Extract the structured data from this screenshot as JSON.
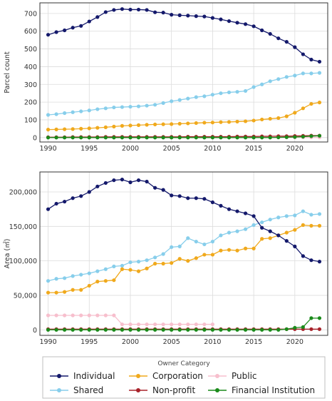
{
  "colors": {
    "Individual": "#14196b",
    "Shared": "#87ceeb",
    "Corporation": "#f0a91c",
    "Non-profit": "#a8222a",
    "Public": "#f7bfcd",
    "Financial Institution": "#1a8a1a"
  },
  "chart_data": [
    {
      "type": "line",
      "title": "",
      "xlabel": "",
      "ylabel": "Parcel count",
      "xlim": [
        1989,
        2024
      ],
      "ylim": [
        -25,
        760
      ],
      "xticks": [
        1990,
        1995,
        2000,
        2005,
        2010,
        2015,
        2020
      ],
      "yticks": [
        0,
        100,
        200,
        300,
        400,
        500,
        600,
        700
      ],
      "ytick_labels": [
        "0",
        "100",
        "200",
        "300",
        "400",
        "500",
        "600",
        "700"
      ],
      "x": [
        1990,
        1991,
        1992,
        1993,
        1994,
        1995,
        1996,
        1997,
        1998,
        1999,
        2000,
        2001,
        2002,
        2003,
        2004,
        2005,
        2006,
        2007,
        2008,
        2009,
        2010,
        2011,
        2012,
        2013,
        2014,
        2015,
        2016,
        2017,
        2018,
        2019,
        2020,
        2021,
        2022,
        2023
      ],
      "series": [
        {
          "name": "Individual",
          "values": [
            580,
            595,
            605,
            620,
            630,
            655,
            680,
            708,
            720,
            725,
            722,
            722,
            720,
            707,
            705,
            693,
            690,
            688,
            685,
            683,
            675,
            667,
            657,
            648,
            640,
            628,
            605,
            585,
            560,
            540,
            510,
            470,
            440,
            428
          ]
        },
        {
          "name": "Shared",
          "values": [
            128,
            132,
            138,
            143,
            148,
            153,
            160,
            165,
            170,
            172,
            174,
            176,
            180,
            185,
            195,
            205,
            212,
            220,
            228,
            233,
            242,
            250,
            255,
            258,
            263,
            285,
            300,
            318,
            330,
            342,
            350,
            362,
            362,
            365
          ]
        },
        {
          "name": "Corporation",
          "values": [
            45,
            46,
            47,
            48,
            50,
            52,
            55,
            58,
            62,
            66,
            68,
            70,
            72,
            74,
            75,
            76,
            78,
            80,
            82,
            84,
            85,
            87,
            88,
            90,
            92,
            96,
            102,
            106,
            110,
            120,
            140,
            165,
            190,
            198
          ]
        },
        {
          "name": "Non-profit",
          "values": [
            2,
            2,
            2,
            3,
            3,
            3,
            3,
            4,
            4,
            4,
            4,
            4,
            4,
            4,
            4,
            4,
            4,
            5,
            5,
            5,
            5,
            5,
            5,
            6,
            6,
            6,
            7,
            7,
            8,
            8,
            9,
            10,
            11,
            11
          ]
        },
        {
          "name": "Public",
          "values": [
            1,
            1,
            1,
            1,
            1,
            1,
            1,
            1,
            1,
            1,
            1,
            1,
            1,
            1,
            1,
            1,
            1,
            1,
            1,
            1,
            1,
            1,
            1,
            1,
            1,
            1,
            1,
            1,
            1,
            1,
            1,
            1,
            1,
            1
          ]
        },
        {
          "name": "Financial Institution",
          "values": [
            0,
            0,
            0,
            0,
            0,
            0,
            0,
            0,
            0,
            0,
            0,
            0,
            0,
            0,
            0,
            0,
            0,
            0,
            0,
            0,
            0,
            0,
            0,
            0,
            0,
            0,
            0,
            0,
            1,
            2,
            3,
            5,
            8,
            10
          ]
        }
      ]
    },
    {
      "type": "line",
      "title": "",
      "xlabel": "",
      "ylabel": "Area (㎡)",
      "xlim": [
        1989,
        2024
      ],
      "ylim": [
        -8000,
        229000
      ],
      "xticks": [
        1990,
        1995,
        2000,
        2005,
        2010,
        2015,
        2020
      ],
      "yticks": [
        0,
        50000,
        100000,
        150000,
        200000
      ],
      "ytick_labels": [
        "0",
        "50,000",
        "100,000",
        "150,000",
        "200,000"
      ],
      "x": [
        1990,
        1991,
        1992,
        1993,
        1994,
        1995,
        1996,
        1997,
        1998,
        1999,
        2000,
        2001,
        2002,
        2003,
        2004,
        2005,
        2006,
        2007,
        2008,
        2009,
        2010,
        2011,
        2012,
        2013,
        2014,
        2015,
        2016,
        2017,
        2018,
        2019,
        2020,
        2021,
        2022,
        2023
      ],
      "series": [
        {
          "name": "Individual",
          "values": [
            175000,
            183000,
            186000,
            191000,
            194000,
            200000,
            208000,
            213000,
            217000,
            218000,
            214000,
            217000,
            215000,
            206000,
            203000,
            195000,
            194000,
            191000,
            191000,
            190000,
            185000,
            180000,
            175000,
            172000,
            169000,
            165000,
            148000,
            143000,
            137000,
            129000,
            121000,
            107000,
            101000,
            99000
          ]
        },
        {
          "name": "Shared",
          "values": [
            71000,
            74000,
            75000,
            78000,
            80000,
            82000,
            85000,
            88000,
            92000,
            93000,
            98000,
            99000,
            101000,
            105000,
            110000,
            120000,
            121000,
            133000,
            128000,
            124000,
            128000,
            137000,
            141000,
            143000,
            146000,
            152000,
            156000,
            160000,
            163000,
            165000,
            166000,
            172000,
            167000,
            168000
          ]
        },
        {
          "name": "Corporation",
          "values": [
            54000,
            54000,
            55000,
            58000,
            58000,
            64000,
            70000,
            71000,
            72000,
            88000,
            87000,
            85000,
            89000,
            96000,
            96000,
            97000,
            103000,
            100000,
            104000,
            109000,
            109000,
            115000,
            116000,
            115000,
            118000,
            118000,
            132000,
            133000,
            137000,
            141000,
            145000,
            152000,
            151000,
            151000
          ]
        },
        {
          "name": "Non-profit",
          "values": [
            1000,
            1000,
            1000,
            1000,
            1000,
            1000,
            1000,
            1000,
            1000,
            1000,
            1000,
            1000,
            1000,
            1000,
            1000,
            1000,
            1000,
            1000,
            1000,
            1000,
            1000,
            1000,
            1000,
            1000,
            1000,
            1000,
            1000,
            1000,
            1000,
            1000,
            1000,
            1000,
            1000,
            1000
          ]
        },
        {
          "name": "Public",
          "values": [
            21000,
            21000,
            21000,
            21000,
            21000,
            21000,
            21000,
            21000,
            21000,
            8000,
            8000,
            8000,
            8000,
            8000,
            8000,
            8000,
            8000,
            8000,
            8000,
            8000,
            8000,
            null,
            null,
            null,
            null,
            null,
            null,
            null,
            null,
            null,
            null,
            null,
            null,
            null
          ]
        },
        {
          "name": "Financial Institution",
          "values": [
            0,
            0,
            0,
            0,
            0,
            0,
            0,
            0,
            0,
            0,
            0,
            0,
            0,
            0,
            0,
            0,
            0,
            0,
            0,
            0,
            0,
            0,
            0,
            0,
            0,
            0,
            0,
            0,
            0,
            1000,
            3000,
            4000,
            17000,
            17000
          ]
        }
      ]
    }
  ],
  "legend": {
    "title": "Owner Category",
    "placement": "bottom",
    "entries": [
      "Individual",
      "Corporation",
      "Public",
      "Shared",
      "Non-profit",
      "Financial Institution"
    ]
  }
}
